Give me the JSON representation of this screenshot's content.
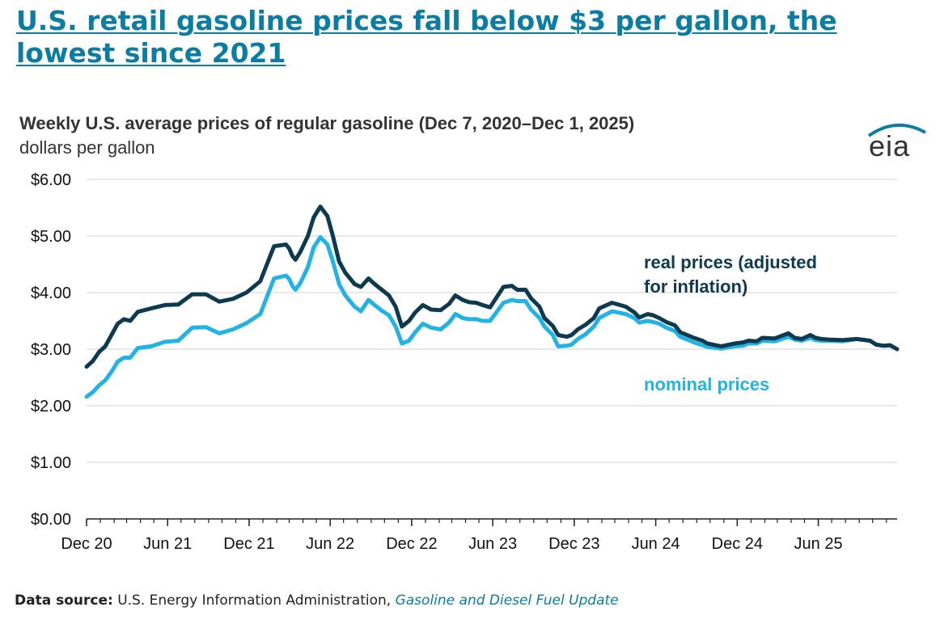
{
  "headline": "U.S. retail gasoline prices fall below $3 per gallon, the lowest since 2021",
  "footer": {
    "source_label": "Data source:",
    "source_text": "U.S. Energy Information Administration,",
    "publication": "Gasoline and Diesel Fuel Update"
  },
  "logo_text": "eia",
  "colors": {
    "real": "#0d3a4f",
    "nominal": "#21b3e6",
    "headline": "#0b7ca3",
    "grid": "#d9d9d9"
  },
  "chart_data": {
    "type": "line",
    "title": "Weekly U.S. average prices of regular gasoline (Dec 7, 2020–Dec 1, 2025)",
    "subtitle": "dollars per gallon",
    "xlabel": "",
    "ylabel": "",
    "xlim": [
      "2020-12-07",
      "2025-12-01"
    ],
    "ylim": [
      0,
      6
    ],
    "grid": true,
    "y_ticks": [
      0,
      1,
      2,
      3,
      4,
      5,
      6
    ],
    "y_tick_labels": [
      "$0.00",
      "$1.00",
      "$2.00",
      "$3.00",
      "$4.00",
      "$5.00",
      "$6.00"
    ],
    "x_ticks": [
      "2020-12",
      "2021-06",
      "2021-12",
      "2022-06",
      "2022-12",
      "2023-06",
      "2023-12",
      "2024-06",
      "2024-12",
      "2025-06"
    ],
    "x_tick_labels": [
      "Dec 20",
      "Jun 21",
      "Dec 21",
      "Jun 22",
      "Dec 22",
      "Jun 23",
      "Dec 23",
      "Jun 24",
      "Dec 24",
      "Jun 25"
    ],
    "series": [
      {
        "name": "real prices (adjusted for inflation)",
        "x": [
          "2020-12-07",
          "2020-12-21",
          "2021-01-04",
          "2021-01-18",
          "2021-02-01",
          "2021-02-15",
          "2021-03-01",
          "2021-03-15",
          "2021-04-01",
          "2021-05-01",
          "2021-06-01",
          "2021-07-01",
          "2021-08-01",
          "2021-09-01",
          "2021-10-01",
          "2021-11-01",
          "2021-12-01",
          "2022-01-01",
          "2022-02-01",
          "2022-02-28",
          "2022-03-07",
          "2022-03-14",
          "2022-03-21",
          "2022-04-01",
          "2022-04-18",
          "2022-05-01",
          "2022-05-16",
          "2022-06-01",
          "2022-06-13",
          "2022-06-27",
          "2022-07-11",
          "2022-08-01",
          "2022-08-15",
          "2022-09-01",
          "2022-09-15",
          "2022-10-01",
          "2022-10-17",
          "2022-11-01",
          "2022-11-15",
          "2022-12-01",
          "2022-12-15",
          "2023-01-01",
          "2023-01-20",
          "2023-02-10",
          "2023-03-01",
          "2023-03-15",
          "2023-04-01",
          "2023-04-15",
          "2023-05-01",
          "2023-05-15",
          "2023-06-01",
          "2023-07-01",
          "2023-07-20",
          "2023-08-01",
          "2023-08-20",
          "2023-09-01",
          "2023-09-20",
          "2023-10-01",
          "2023-10-20",
          "2023-11-01",
          "2023-11-20",
          "2023-12-01",
          "2023-12-15",
          "2024-01-01",
          "2024-01-20",
          "2024-02-01",
          "2024-03-01",
          "2024-04-01",
          "2024-04-20",
          "2024-05-01",
          "2024-05-20",
          "2024-06-01",
          "2024-06-15",
          "2024-07-01",
          "2024-07-20",
          "2024-08-01",
          "2024-09-01",
          "2024-09-20",
          "2024-10-01",
          "2024-11-01",
          "2024-12-01",
          "2024-12-20",
          "2025-01-01",
          "2025-01-20",
          "2025-02-01",
          "2025-03-01",
          "2025-04-01",
          "2025-04-15",
          "2025-05-01",
          "2025-05-20",
          "2025-06-01",
          "2025-06-15",
          "2025-07-01",
          "2025-08-01",
          "2025-09-01",
          "2025-10-01",
          "2025-10-15",
          "2025-11-01",
          "2025-11-15",
          "2025-12-01"
        ],
        "values": [
          2.69,
          2.79,
          2.95,
          3.05,
          3.25,
          3.45,
          3.53,
          3.5,
          3.66,
          3.72,
          3.78,
          3.79,
          3.97,
          3.97,
          3.84,
          3.89,
          4.0,
          4.2,
          4.82,
          4.85,
          4.78,
          4.65,
          4.58,
          4.72,
          5.0,
          5.33,
          5.52,
          5.35,
          5.0,
          4.55,
          4.35,
          4.15,
          4.1,
          4.25,
          4.15,
          4.05,
          3.95,
          3.75,
          3.4,
          3.5,
          3.65,
          3.78,
          3.7,
          3.69,
          3.8,
          3.95,
          3.87,
          3.83,
          3.82,
          3.78,
          3.74,
          4.1,
          4.12,
          4.05,
          4.05,
          3.9,
          3.75,
          3.55,
          3.41,
          3.25,
          3.22,
          3.25,
          3.35,
          3.43,
          3.55,
          3.72,
          3.82,
          3.75,
          3.65,
          3.56,
          3.62,
          3.6,
          3.55,
          3.48,
          3.42,
          3.3,
          3.2,
          3.15,
          3.1,
          3.05,
          3.1,
          3.12,
          3.15,
          3.14,
          3.2,
          3.19,
          3.28,
          3.2,
          3.18,
          3.25,
          3.2,
          3.18,
          3.17,
          3.16,
          3.18,
          3.15,
          3.08,
          3.06,
          3.07,
          3.0
        ]
      },
      {
        "name": "nominal prices",
        "x": [
          "2020-12-07",
          "2020-12-21",
          "2021-01-04",
          "2021-01-18",
          "2021-02-01",
          "2021-02-15",
          "2021-03-01",
          "2021-03-15",
          "2021-04-01",
          "2021-05-01",
          "2021-06-01",
          "2021-07-01",
          "2021-08-01",
          "2021-09-01",
          "2021-10-01",
          "2021-11-01",
          "2021-12-01",
          "2022-01-01",
          "2022-02-01",
          "2022-02-28",
          "2022-03-07",
          "2022-03-14",
          "2022-03-21",
          "2022-04-01",
          "2022-04-18",
          "2022-05-01",
          "2022-05-16",
          "2022-06-01",
          "2022-06-13",
          "2022-06-27",
          "2022-07-11",
          "2022-08-01",
          "2022-08-15",
          "2022-09-01",
          "2022-09-15",
          "2022-10-01",
          "2022-10-17",
          "2022-11-01",
          "2022-11-15",
          "2022-12-01",
          "2022-12-15",
          "2023-01-01",
          "2023-01-20",
          "2023-02-10",
          "2023-03-01",
          "2023-03-15",
          "2023-04-01",
          "2023-04-15",
          "2023-05-01",
          "2023-05-15",
          "2023-06-01",
          "2023-07-01",
          "2023-07-20",
          "2023-08-01",
          "2023-08-20",
          "2023-09-01",
          "2023-09-20",
          "2023-10-01",
          "2023-10-20",
          "2023-11-01",
          "2023-11-20",
          "2023-12-01",
          "2023-12-15",
          "2024-01-01",
          "2024-01-20",
          "2024-02-01",
          "2024-03-01",
          "2024-04-01",
          "2024-04-20",
          "2024-05-01",
          "2024-05-20",
          "2024-06-01",
          "2024-06-15",
          "2024-07-01",
          "2024-07-20",
          "2024-08-01",
          "2024-09-01",
          "2024-09-20",
          "2024-10-01",
          "2024-11-01",
          "2024-12-01",
          "2024-12-20",
          "2025-01-01",
          "2025-01-20",
          "2025-02-01",
          "2025-03-01",
          "2025-04-01",
          "2025-04-15",
          "2025-05-01",
          "2025-05-20",
          "2025-06-01",
          "2025-06-15",
          "2025-07-01",
          "2025-08-01",
          "2025-09-01",
          "2025-10-01",
          "2025-10-15",
          "2025-11-01",
          "2025-11-15",
          "2025-12-01"
        ],
        "values": [
          2.16,
          2.24,
          2.36,
          2.45,
          2.6,
          2.78,
          2.85,
          2.85,
          3.02,
          3.05,
          3.13,
          3.15,
          3.38,
          3.39,
          3.28,
          3.35,
          3.46,
          3.62,
          4.25,
          4.3,
          4.24,
          4.12,
          4.05,
          4.17,
          4.45,
          4.8,
          4.98,
          4.85,
          4.55,
          4.15,
          3.95,
          3.75,
          3.67,
          3.87,
          3.78,
          3.68,
          3.6,
          3.4,
          3.1,
          3.15,
          3.3,
          3.45,
          3.38,
          3.35,
          3.47,
          3.62,
          3.55,
          3.53,
          3.53,
          3.5,
          3.5,
          3.82,
          3.87,
          3.85,
          3.85,
          3.7,
          3.55,
          3.4,
          3.25,
          3.05,
          3.06,
          3.08,
          3.18,
          3.26,
          3.4,
          3.55,
          3.67,
          3.62,
          3.55,
          3.47,
          3.5,
          3.48,
          3.45,
          3.38,
          3.32,
          3.22,
          3.12,
          3.07,
          3.04,
          3.01,
          3.05,
          3.06,
          3.1,
          3.1,
          3.15,
          3.14,
          3.22,
          3.17,
          3.15,
          3.2,
          3.16,
          3.15,
          3.15,
          3.14,
          3.18,
          3.15,
          3.08,
          3.06,
          3.07,
          3.0
        ]
      }
    ]
  }
}
